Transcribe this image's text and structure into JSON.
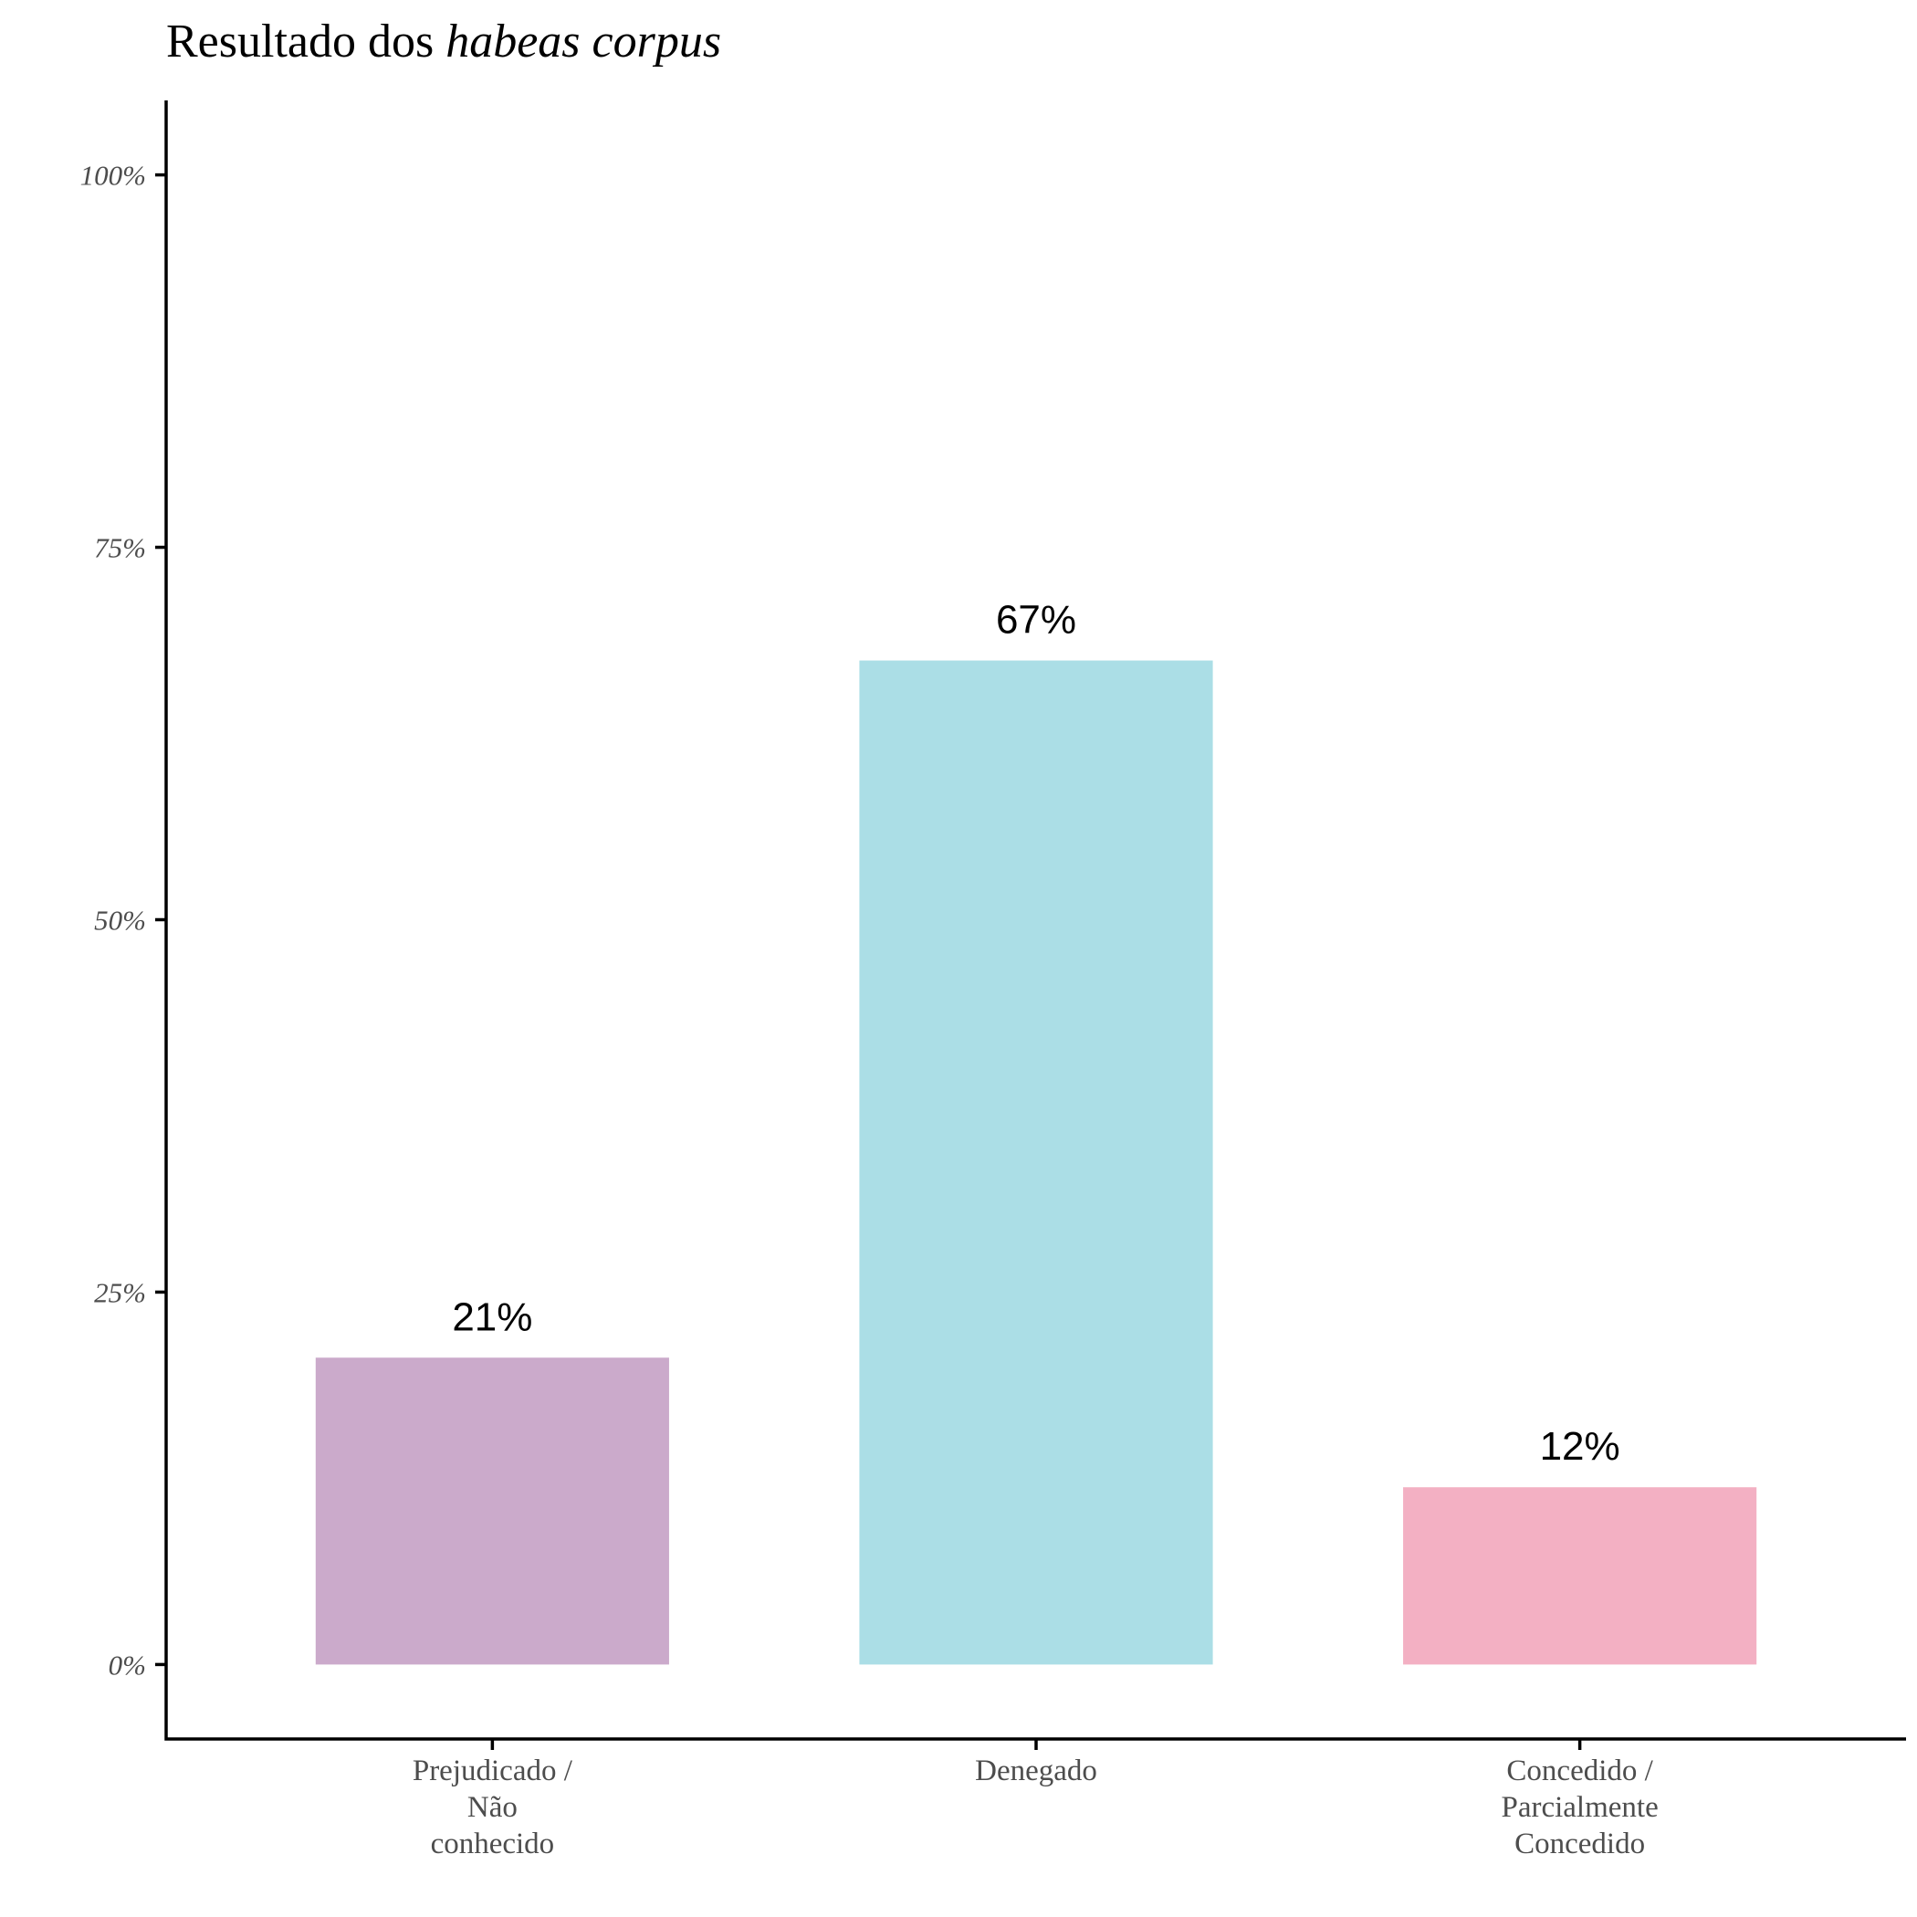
{
  "chart_data": {
    "type": "bar",
    "title": {
      "plain": "Resultado dos ",
      "italic": "habeas corpus"
    },
    "xlabel": "",
    "ylabel": "",
    "categories": [
      [
        "Prejudicado /",
        "Não",
        "conhecido"
      ],
      [
        "Denegado"
      ],
      [
        "Concedido /",
        "Parcialmente",
        "Concedido"
      ]
    ],
    "values": [
      20.6,
      67.4,
      11.9
    ],
    "data_labels": [
      "21%",
      "67%",
      "12%"
    ],
    "colors": [
      "#cbaacb",
      "#abdee6",
      "#f3b0c3"
    ],
    "ylim": [
      -5,
      105
    ],
    "yticks": [
      {
        "value": 0,
        "label": "0%"
      },
      {
        "value": 25,
        "label": "25%"
      },
      {
        "value": 50,
        "label": "50%"
      },
      {
        "value": 75,
        "label": "75%"
      },
      {
        "value": 100,
        "label": "100%"
      }
    ],
    "grid": false,
    "legend": "none"
  }
}
